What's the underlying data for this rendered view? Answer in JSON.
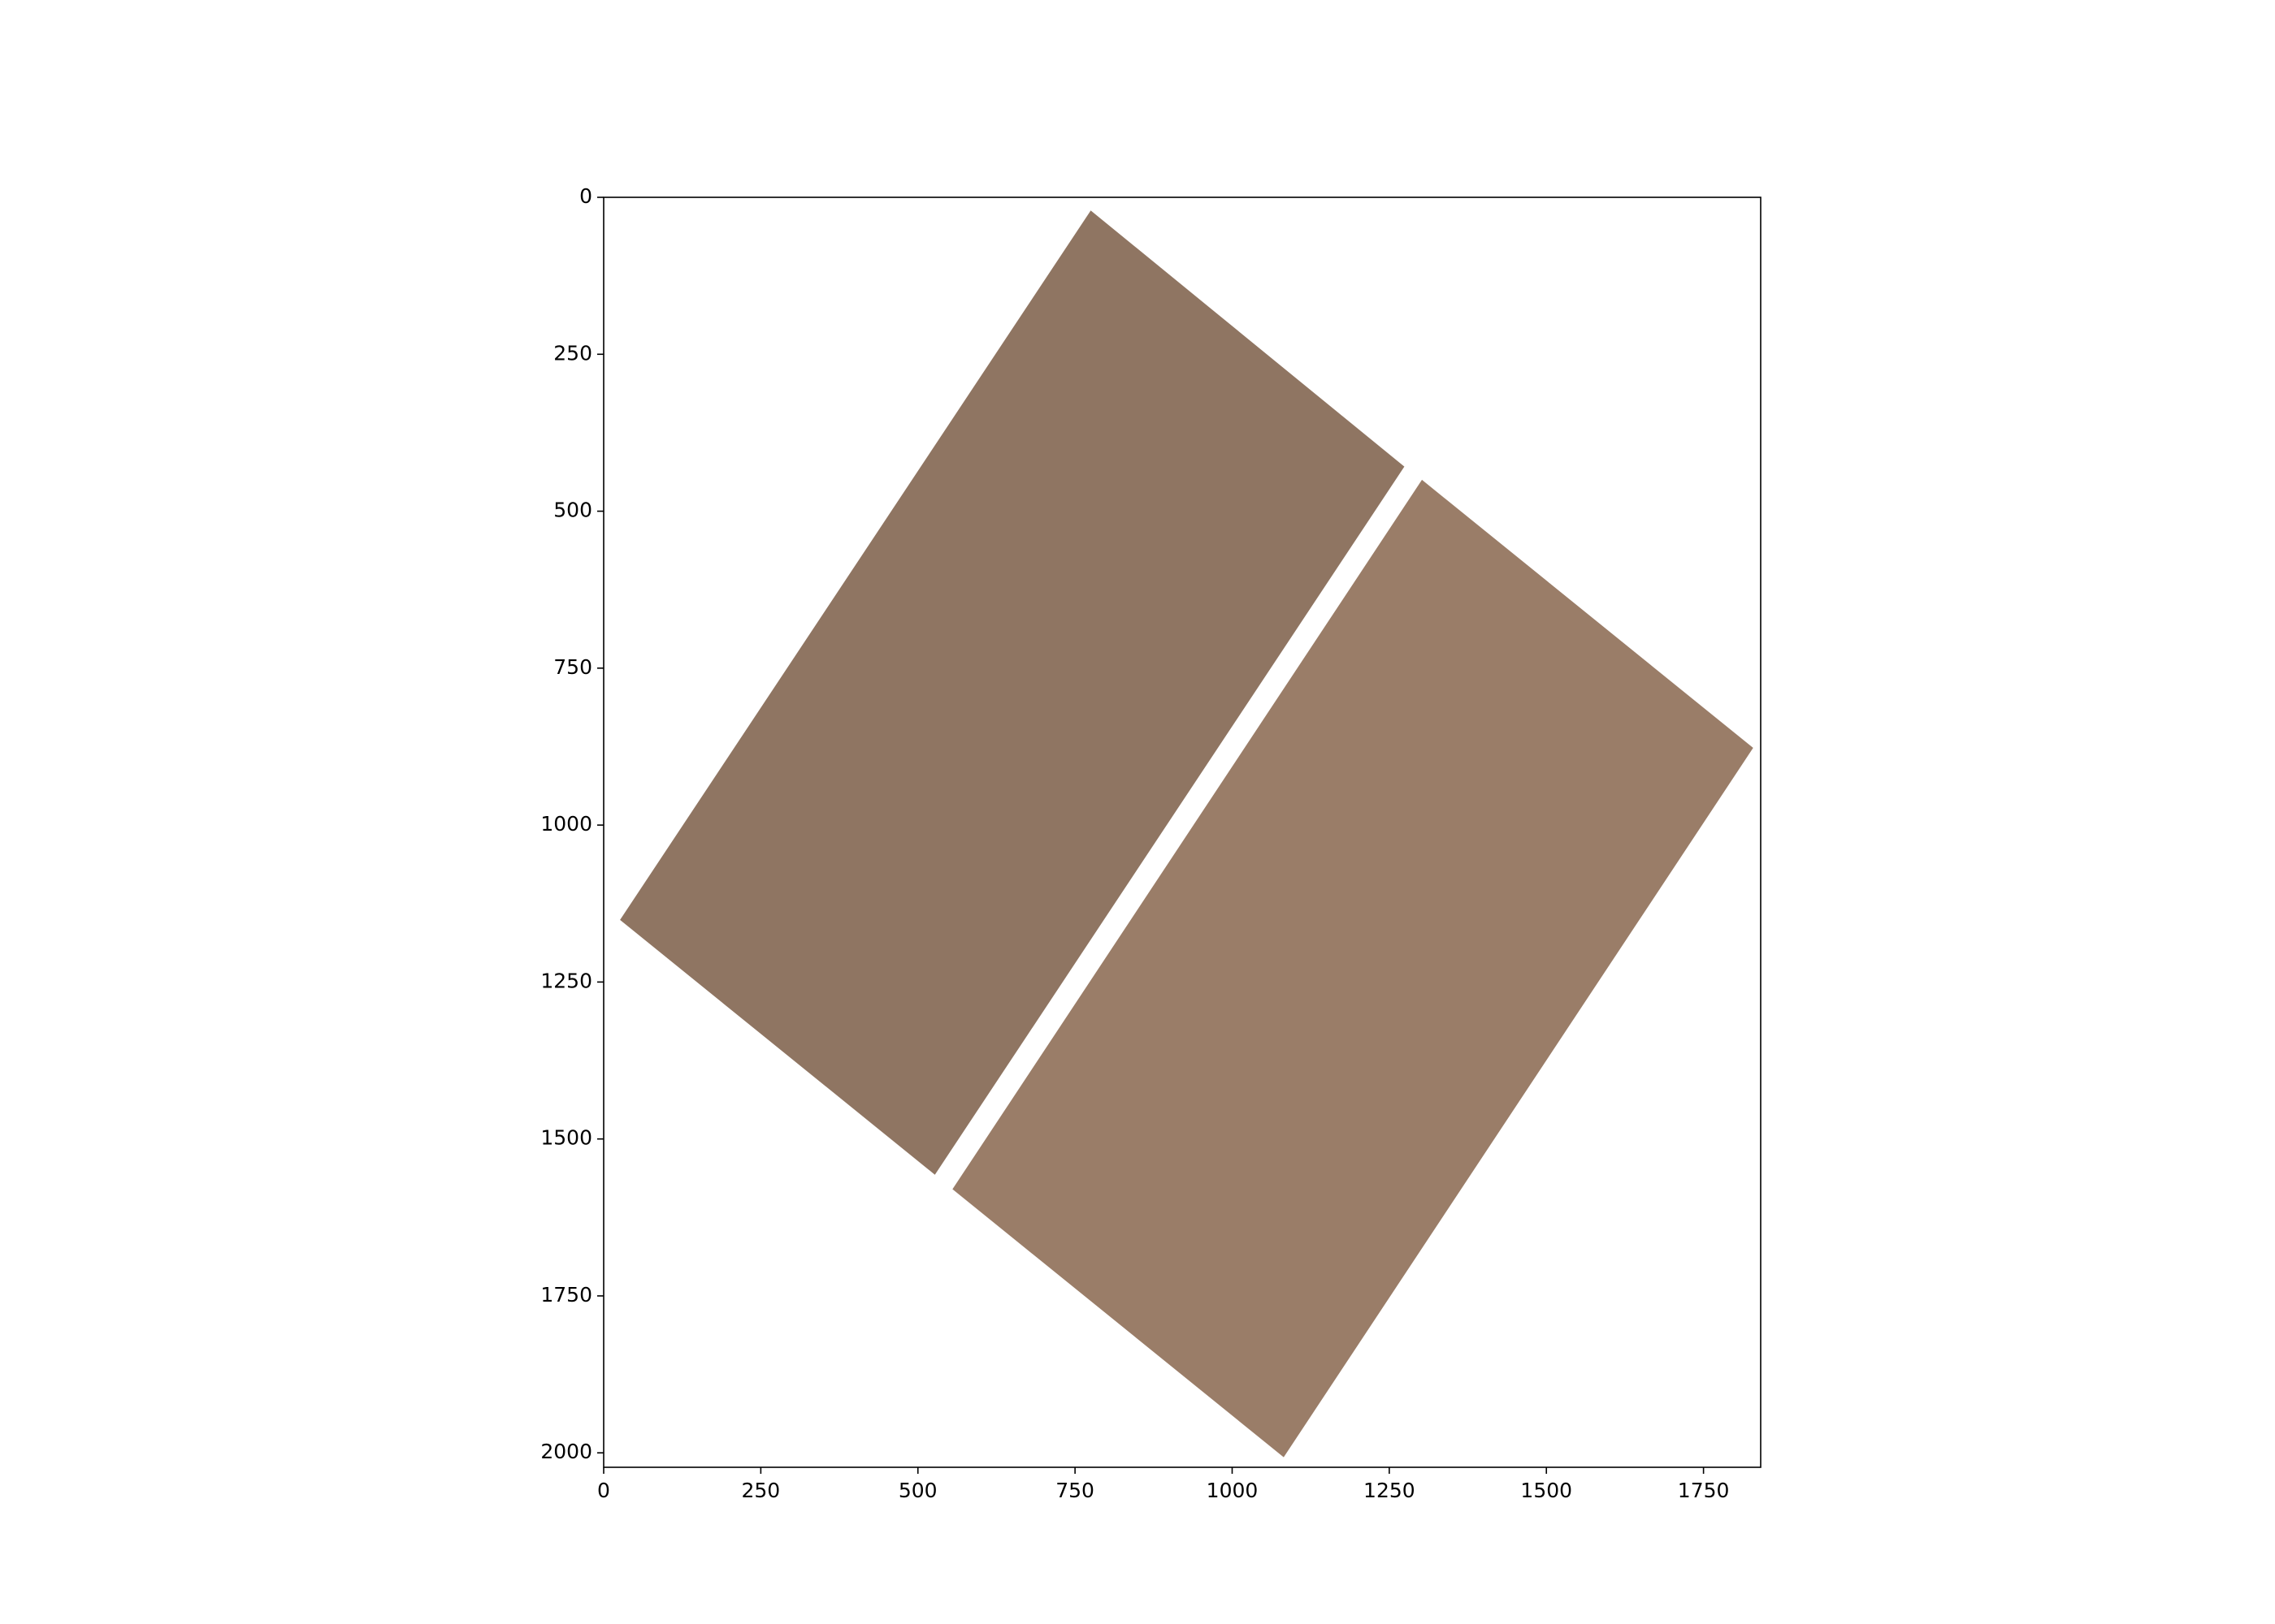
{
  "chart_data": {
    "type": "image",
    "polygons": [
      {
        "color": "#8f7562",
        "x": [
          775,
          1274,
          527,
          26
        ],
        "y": [
          21,
          429,
          1557,
          1151
        ]
      },
      {
        "color": "#9a7d68",
        "x": [
          1302,
          1829,
          1082,
          555
        ],
        "y": [
          450,
          877,
          2007,
          1580
        ]
      }
    ],
    "xlim": [
      0,
      1841
    ],
    "ylim": [
      2023,
      0
    ],
    "xticks": [
      0,
      250,
      500,
      750,
      1000,
      1250,
      1500,
      1750
    ],
    "yticks": [
      0,
      250,
      500,
      750,
      1000,
      1250,
      1500,
      1750,
      2000
    ]
  }
}
